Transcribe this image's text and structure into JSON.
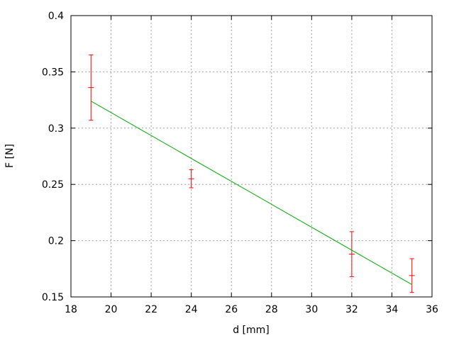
{
  "chart_data": {
    "type": "scatter",
    "xlabel": "d [mm]",
    "ylabel": "F [N]",
    "xlim": [
      18,
      36
    ],
    "ylim": [
      0.15,
      0.4
    ],
    "xticks": [
      18,
      20,
      22,
      24,
      26,
      28,
      30,
      32,
      34,
      36
    ],
    "xtick_labels": [
      "18",
      "20",
      "22",
      "24",
      "26",
      "28",
      "30",
      "32",
      "34",
      "36"
    ],
    "yticks": [
      0.15,
      0.2,
      0.25,
      0.3,
      0.35,
      0.4
    ],
    "ytick_labels": [
      "0.15",
      "0.2",
      "0.25",
      "0.3",
      "0.35",
      "0.4"
    ],
    "grid": true,
    "series": [
      {
        "type": "errorbars",
        "color": "#ff0000",
        "points": [
          {
            "x": 19,
            "y": 0.336,
            "ylow": 0.307,
            "yhigh": 0.365
          },
          {
            "x": 24,
            "y": 0.255,
            "ylow": 0.247,
            "yhigh": 0.263
          },
          {
            "x": 32,
            "y": 0.188,
            "ylow": 0.168,
            "yhigh": 0.208
          },
          {
            "x": 35,
            "y": 0.169,
            "ylow": 0.154,
            "yhigh": 0.184
          }
        ]
      },
      {
        "type": "line",
        "color": "#00aa00",
        "x": [
          19,
          35
        ],
        "y": [
          0.324,
          0.161
        ]
      }
    ]
  }
}
